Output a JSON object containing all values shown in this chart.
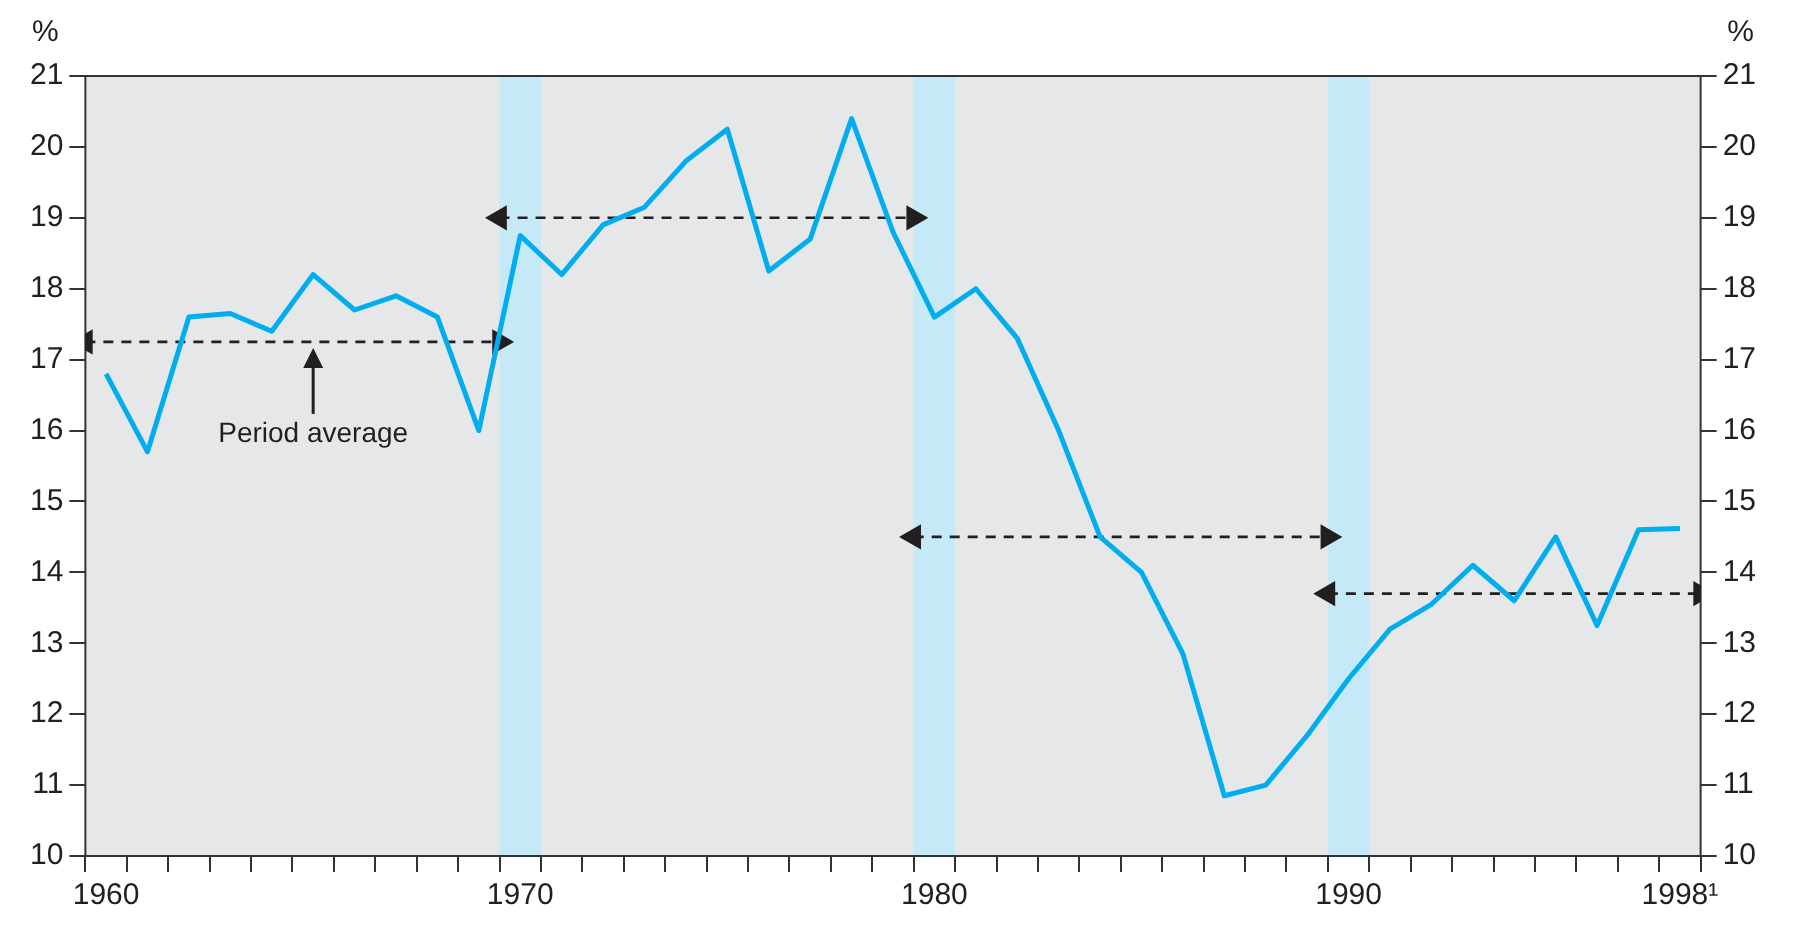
{
  "chart_data": {
    "type": "line",
    "ylabel": "%",
    "y2label": "%",
    "xlim": [
      1959.5,
      1998.5
    ],
    "xticks": [
      {
        "value": 1959.5,
        "label": null
      },
      {
        "value": 1960,
        "label": "1960"
      },
      {
        "value": 1960.5,
        "label": null
      },
      {
        "value": 1961.5,
        "label": null
      },
      {
        "value": 1962.5,
        "label": null
      },
      {
        "value": 1963.5,
        "label": null
      },
      {
        "value": 1964.5,
        "label": null
      },
      {
        "value": 1965.5,
        "label": null
      },
      {
        "value": 1966.5,
        "label": null
      },
      {
        "value": 1967.5,
        "label": null
      },
      {
        "value": 1968.5,
        "label": null
      },
      {
        "value": 1969.5,
        "label": null
      },
      {
        "value": 1970,
        "label": "1970"
      },
      {
        "value": 1970.5,
        "label": null
      },
      {
        "value": 1971.5,
        "label": null
      },
      {
        "value": 1972.5,
        "label": null
      },
      {
        "value": 1973.5,
        "label": null
      },
      {
        "value": 1974.5,
        "label": null
      },
      {
        "value": 1975.5,
        "label": null
      },
      {
        "value": 1976.5,
        "label": null
      },
      {
        "value": 1977.5,
        "label": null
      },
      {
        "value": 1978.5,
        "label": null
      },
      {
        "value": 1979.5,
        "label": null
      },
      {
        "value": 1980,
        "label": "1980"
      },
      {
        "value": 1980.5,
        "label": null
      },
      {
        "value": 1981.5,
        "label": null
      },
      {
        "value": 1982.5,
        "label": null
      },
      {
        "value": 1983.5,
        "label": null
      },
      {
        "value": 1984.5,
        "label": null
      },
      {
        "value": 1985.5,
        "label": null
      },
      {
        "value": 1986.5,
        "label": null
      },
      {
        "value": 1987.5,
        "label": null
      },
      {
        "value": 1988.5,
        "label": null
      },
      {
        "value": 1989.5,
        "label": null
      },
      {
        "value": 1990,
        "label": "1990"
      },
      {
        "value": 1990.5,
        "label": null
      },
      {
        "value": 1991.5,
        "label": null
      },
      {
        "value": 1992.5,
        "label": null
      },
      {
        "value": 1993.5,
        "label": null
      },
      {
        "value": 1994.5,
        "label": null
      },
      {
        "value": 1995.5,
        "label": null
      },
      {
        "value": 1996.5,
        "label": null
      },
      {
        "value": 1997.5,
        "label": null
      },
      {
        "value": 1998,
        "label": "1998¹"
      },
      {
        "value": 1998.5,
        "label": null
      }
    ],
    "ylim": [
      10,
      21
    ],
    "yticks": [
      10,
      11,
      12,
      13,
      14,
      15,
      16,
      17,
      18,
      19,
      20,
      21
    ],
    "y2lim": [
      10,
      21
    ],
    "y2ticks": [
      10,
      11,
      12,
      13,
      14,
      15,
      16,
      17,
      18,
      19,
      20,
      21
    ],
    "grid": false,
    "legend": false,
    "series": [
      {
        "color": "#00aeef",
        "marker": "none",
        "line_style": "solid",
        "x": [
          1960,
          1961,
          1962,
          1963,
          1964,
          1965,
          1966,
          1967,
          1968,
          1969,
          1970,
          1971,
          1972,
          1973,
          1974,
          1975,
          1976,
          1977,
          1978,
          1979,
          1980,
          1981,
          1982,
          1983,
          1984,
          1985,
          1986,
          1987,
          1988,
          1989,
          1990,
          1991,
          1992,
          1993,
          1994,
          1995,
          1996,
          1997,
          1998
        ],
        "values": [
          16.8,
          15.7,
          17.6,
          17.65,
          17.4,
          18.2,
          17.7,
          17.9,
          17.6,
          16.0,
          18.75,
          18.2,
          18.9,
          19.15,
          19.8,
          20.25,
          18.25,
          18.7,
          20.4,
          18.8,
          17.6,
          18.0,
          17.3,
          16.0,
          14.5,
          14.0,
          12.85,
          10.85,
          11.0,
          11.7,
          12.5,
          13.2,
          13.55,
          14.1,
          13.6,
          14.5,
          13.25,
          14.6,
          14.62
        ]
      },
      {
        "color": "#231f20",
        "marker": "triangle",
        "line_style": "dashed",
        "x": [
          1959.5,
          1969.5
        ],
        "values": [
          17.25,
          17.25
        ]
      },
      {
        "color": "#231f20",
        "marker": "triangle",
        "line_style": "dashed",
        "x": [
          1969.5,
          1979.5
        ],
        "values": [
          19.0,
          19.0
        ]
      },
      {
        "color": "#231f20",
        "marker": "triangle",
        "line_style": "dashed",
        "x": [
          1979.5,
          1989.5
        ],
        "values": [
          14.5,
          14.5
        ]
      },
      {
        "color": "#231f20",
        "marker": "triangle",
        "line_style": "dashed",
        "x": [
          1989.5,
          1998.5
        ],
        "values": [
          13.7,
          13.7
        ]
      }
    ],
    "bands": [
      {
        "axis": "x",
        "from": 1969.5,
        "to": 1970.5,
        "color": "#c6e9f8"
      },
      {
        "axis": "x",
        "from": 1979.5,
        "to": 1980.5,
        "color": "#c6e9f8"
      },
      {
        "axis": "x",
        "from": 1989.5,
        "to": 1990.5,
        "color": "#c6e9f8"
      }
    ],
    "annotations": [
      {
        "text": "Period average",
        "x": 1965,
        "y": 17.25
      }
    ]
  }
}
